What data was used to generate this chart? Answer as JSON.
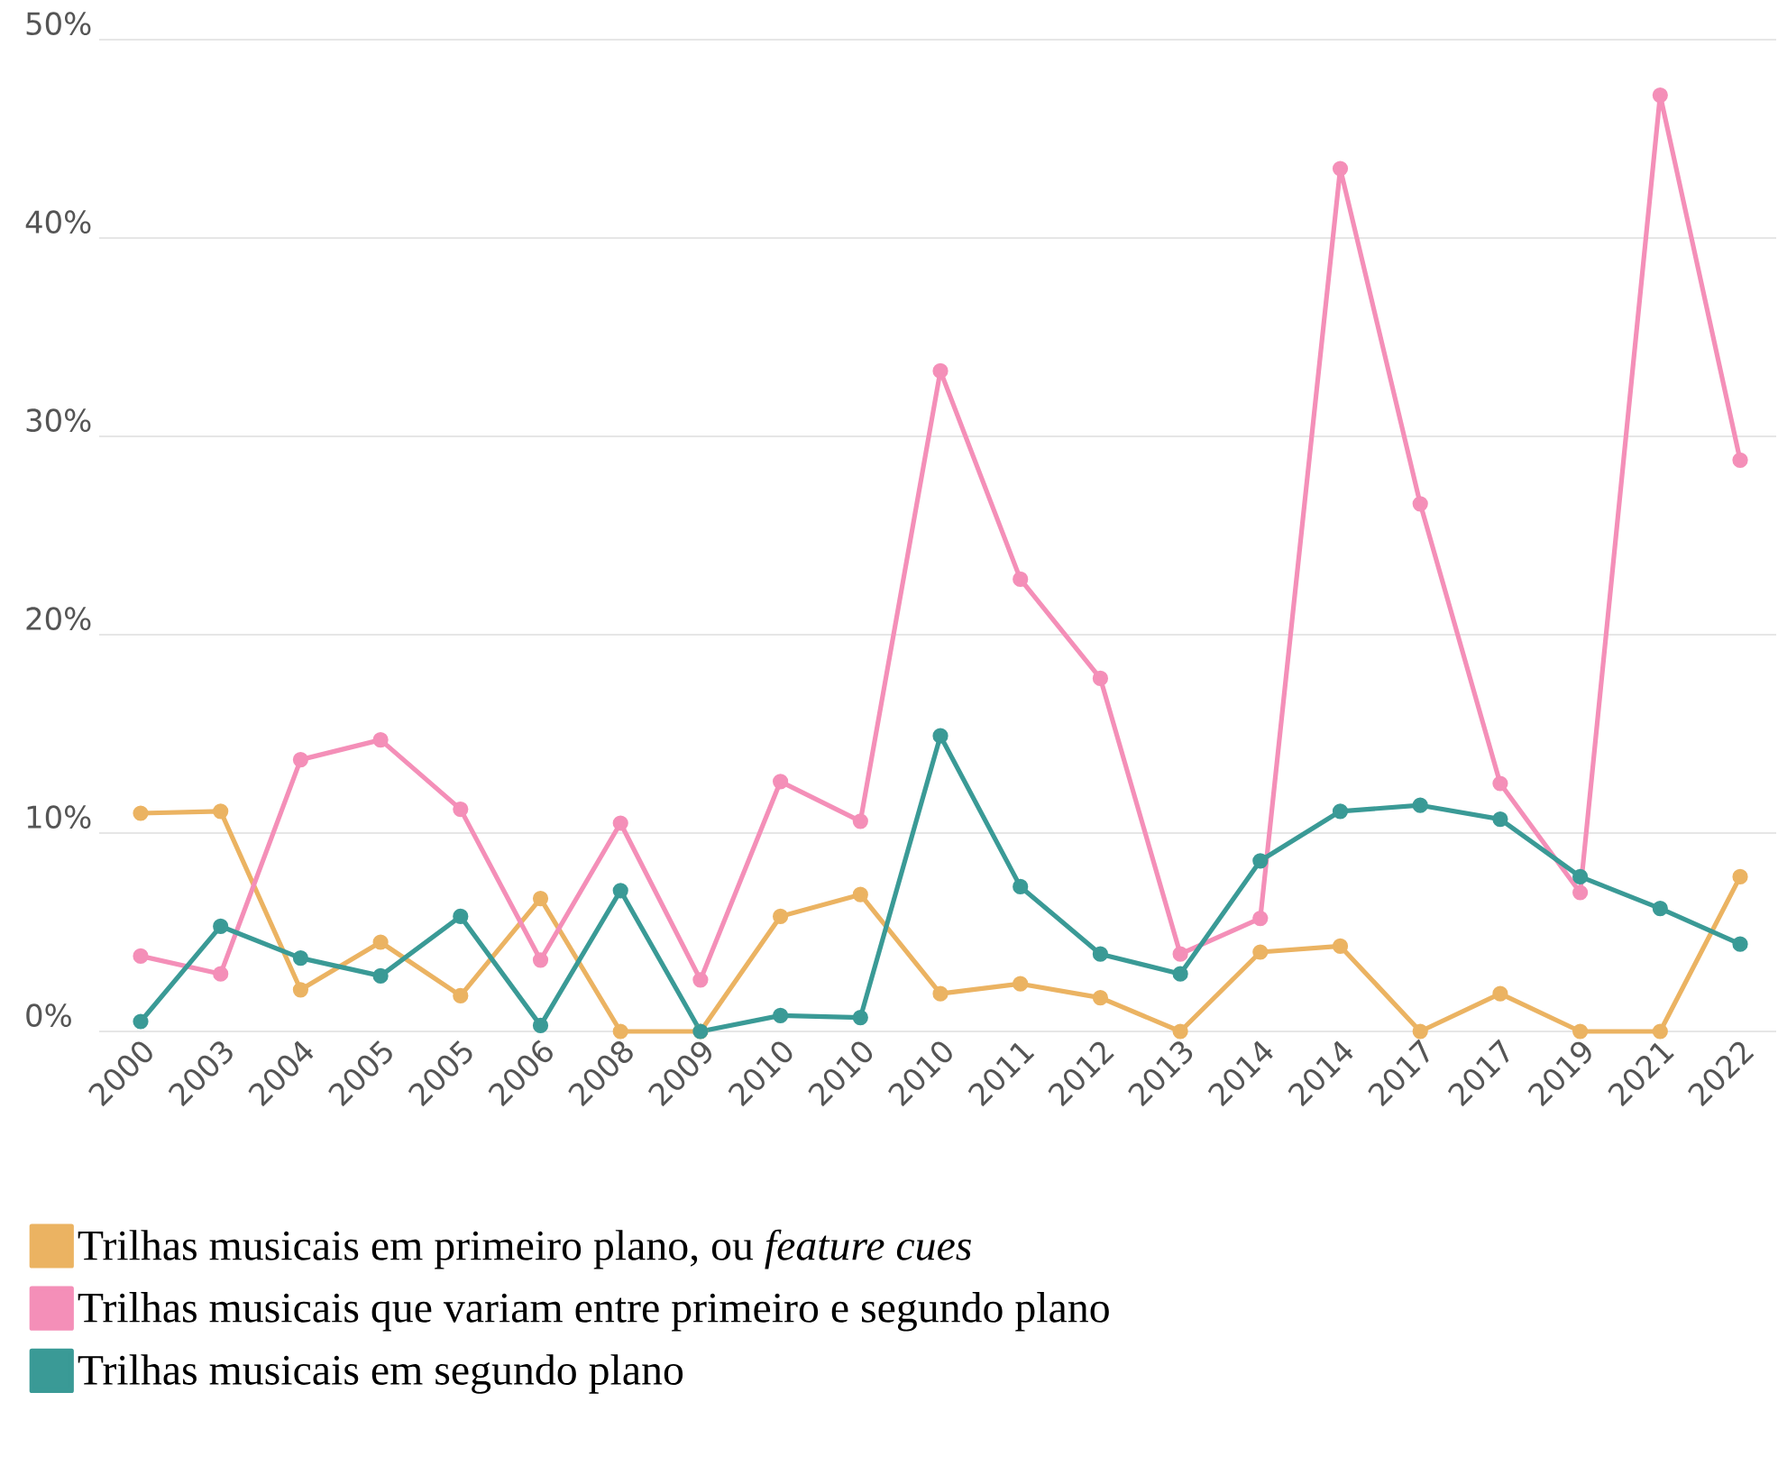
{
  "chart_data": {
    "type": "line",
    "categories": [
      "2000",
      "2003",
      "2004",
      "2005",
      "2005",
      "2006",
      "2008",
      "2009",
      "2010",
      "2010",
      "2010",
      "2011",
      "2012",
      "2013",
      "2014",
      "2014",
      "2017",
      "2017",
      "2019",
      "2021",
      "2022"
    ],
    "series": [
      {
        "name": "Trilhas musicais em primeiro plano, ou *feature cues*",
        "color": "#ebb362",
        "values": [
          11.0,
          11.1,
          2.1,
          4.5,
          1.8,
          6.7,
          0,
          0,
          5.8,
          6.9,
          1.9,
          2.4,
          1.7,
          0,
          4.0,
          4.3,
          0,
          1.9,
          0,
          0,
          7.8
        ]
      },
      {
        "name": "Trilhas musicais que variam entre primeiro e segundo plano",
        "color": "#f48fb8",
        "values": [
          3.8,
          2.9,
          13.7,
          14.7,
          11.2,
          3.6,
          10.5,
          2.6,
          12.6,
          10.6,
          33.3,
          22.8,
          17.8,
          3.9,
          5.7,
          43.5,
          26.6,
          12.5,
          7.0,
          47.2,
          28.8
        ]
      },
      {
        "name": "Trilhas musicais em segundo plano",
        "color": "#3a9a96",
        "values": [
          0.5,
          5.3,
          3.7,
          2.8,
          5.8,
          0.3,
          7.1,
          0,
          0.8,
          0.7,
          14.9,
          7.3,
          3.9,
          2.9,
          8.6,
          11.1,
          11.4,
          10.7,
          7.8,
          6.2,
          4.4
        ]
      }
    ],
    "ylim": [
      0,
      50
    ],
    "yticks": [
      {
        "value": 0,
        "label": "0%"
      },
      {
        "value": 10,
        "label": "10%"
      },
      {
        "value": 20,
        "label": "20%"
      },
      {
        "value": 30,
        "label": "30%"
      },
      {
        "value": 40,
        "label": "40%"
      },
      {
        "value": 50,
        "label": "50%"
      }
    ],
    "grid": "y",
    "legend": "bottom",
    "marker": "circle",
    "line_style": "solid"
  }
}
